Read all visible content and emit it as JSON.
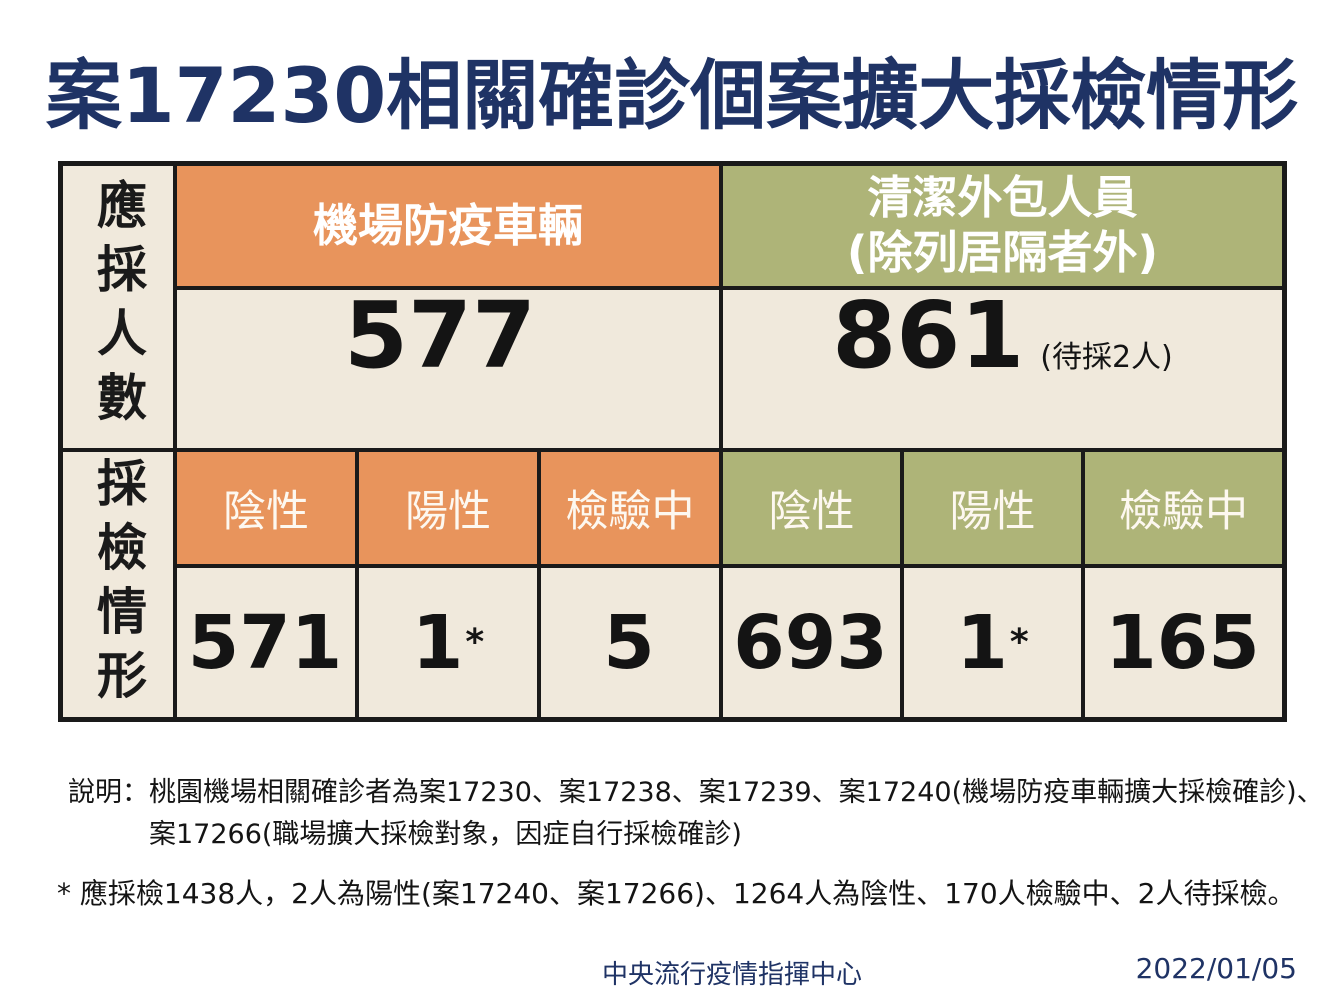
{
  "title": "案17230相關確診個案擴大採檢情形",
  "colors": {
    "accent_orange": "#E8945C",
    "accent_olive": "#AEB478",
    "cell_beige": "#F0E9DC",
    "title_navy": "#1F3365",
    "table_border": "#1A1A1A"
  },
  "table": {
    "row_label_people": "應採人數",
    "row_label_status": "採檢情形",
    "groups": [
      {
        "header": "機場防疫車輛",
        "header_line2": "",
        "total": "577",
        "total_note": "",
        "sub_headers": [
          "陰性",
          "陽性",
          "檢驗中"
        ],
        "values": [
          {
            "num": "571",
            "star": ""
          },
          {
            "num": "1",
            "star": "*"
          },
          {
            "num": "5",
            "star": ""
          }
        ]
      },
      {
        "header": "清潔外包人員",
        "header_line2": "(除列居隔者外)",
        "total": "861",
        "total_note": "(待採2人)",
        "sub_headers": [
          "陰性",
          "陽性",
          "檢驗中"
        ],
        "values": [
          {
            "num": "693",
            "star": ""
          },
          {
            "num": "1",
            "star": "*"
          },
          {
            "num": "165",
            "star": ""
          }
        ]
      }
    ]
  },
  "notes": {
    "explanation_label": "說明：",
    "explanation_line1": "桃園機場相關確診者為案17230、案17238、案17239、案17240(機場防疫車輛擴大採檢確診)、",
    "explanation_line2": "案17266(職場擴大採檢對象，因症自行採檢確診)",
    "star_note": "* 應採檢1438人，2人為陽性(案17240、案17266)、1264人為陰性、170人檢驗中、2人待採檢。"
  },
  "footer": {
    "organization": "中央流行疫情指揮中心",
    "date": "2022/01/05"
  }
}
